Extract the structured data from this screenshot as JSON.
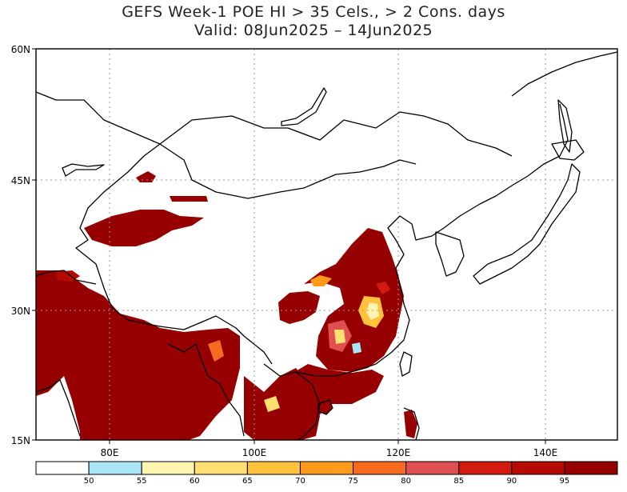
{
  "title": {
    "line1": "GEFS Week-1 POE HI > 35 Cels., > 2 Cons. days",
    "line2": "Valid: 08Jun2025 – 14Jun2025"
  },
  "axes": {
    "y_ticks": [
      "60N",
      "45N",
      "30N",
      "15N"
    ],
    "x_ticks": [
      "80E",
      "100E",
      "120E",
      "140E"
    ]
  },
  "colorbar": {
    "labels": [
      "50",
      "55",
      "60",
      "65",
      "70",
      "75",
      "80",
      "85",
      "90",
      "95"
    ],
    "colors": [
      "#ffffff",
      "#a8e6f5",
      "#fff5b0",
      "#ffe070",
      "#ffc23c",
      "#ff9a1a",
      "#f76a20",
      "#e05050",
      "#d21a0e",
      "#b50a00",
      "#960000"
    ]
  },
  "map": {
    "lon_range": [
      65,
      150
    ],
    "lat_range": [
      15,
      60
    ],
    "fill_color_main": "#960000"
  }
}
